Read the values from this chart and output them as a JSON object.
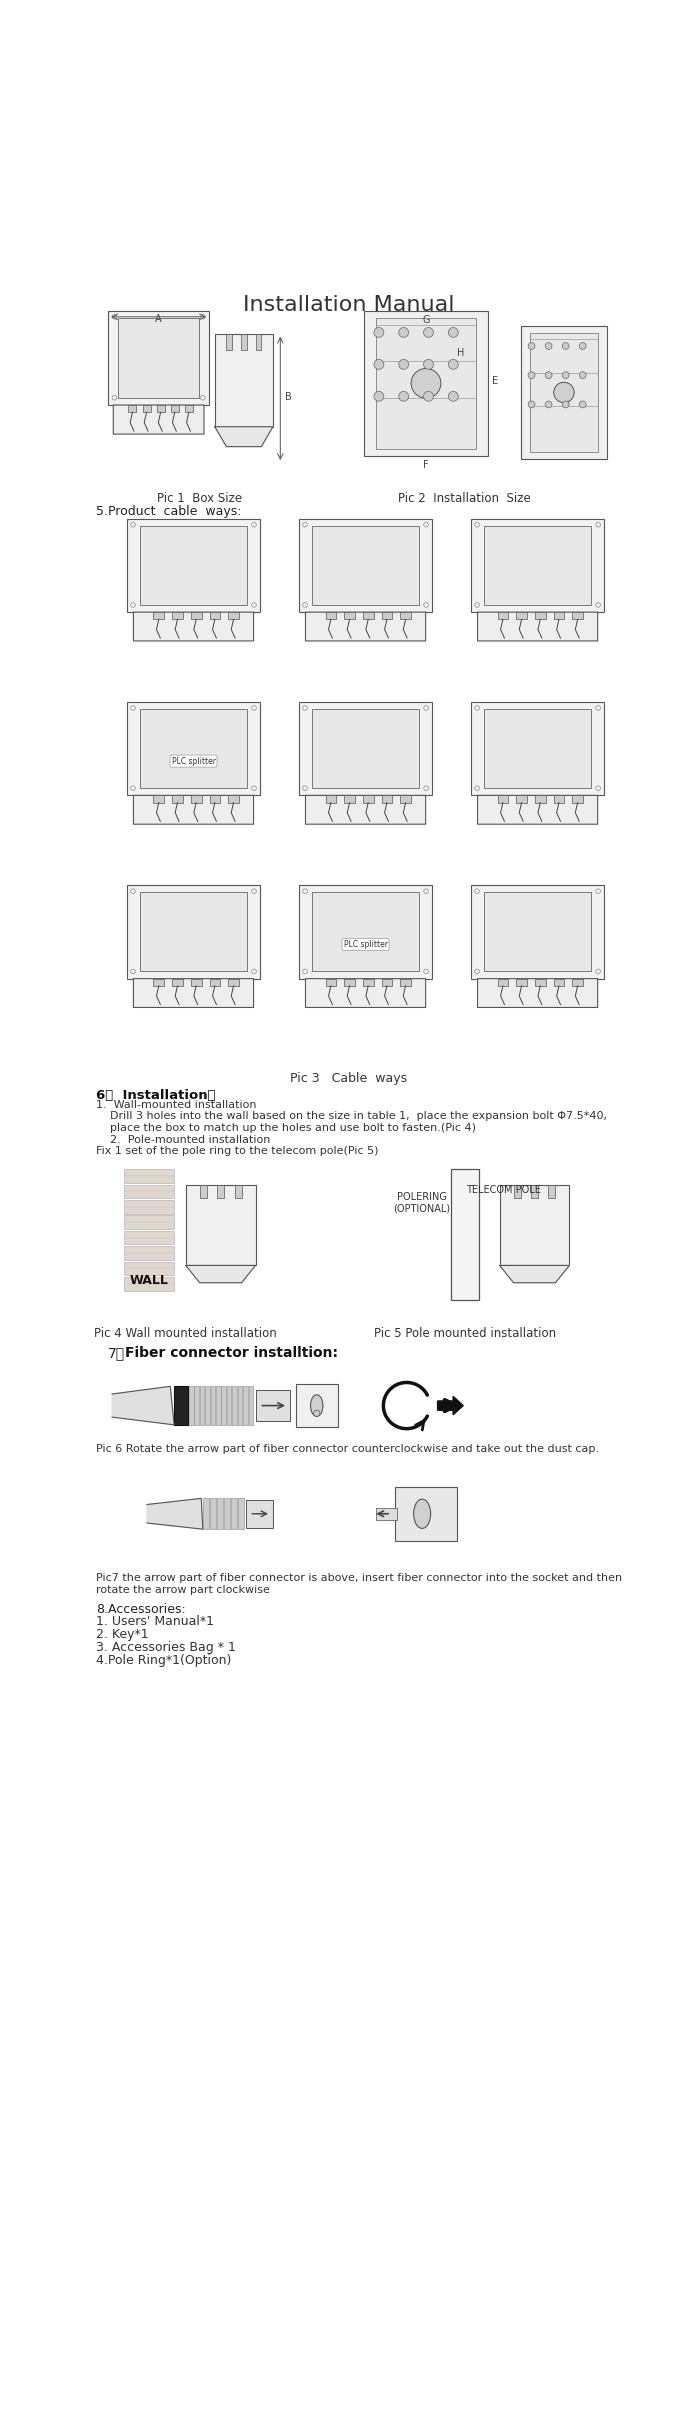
{
  "title": "Installation Manual",
  "bg_color": "#ffffff",
  "figsize": [
    6.8,
    24.09
  ],
  "dpi": 100,
  "pic1_caption": "Pic 1  Box Size",
  "pic2_caption": "Pic 2  Installation  Size",
  "section5_label": "5.Product  cable  ways:",
  "pic3_caption": "Pic 3   Cable  ways",
  "section6_title": "6．  Installation：",
  "section6_lines": [
    "1.  Wall-mounted installation",
    "    Drill 3 holes into the wall based on the size in table 1,  place the expansion bolt Φ7.5*40,",
    "    place the box to match up the holes and use bolt to fasten.(Pic 4)",
    "    2.  Pole-mounted installation",
    "Fix 1 set of the pole ring to the telecom pole(Pic 5)"
  ],
  "pic4_caption": "Pic 4 Wall mounted installation",
  "pic5_caption": "Pic 5 Pole mounted installation",
  "section7_title": "7、  Fiber connector installtion:",
  "pic6_caption": "Pic 6 Rotate the arrow part of fiber connector counterclockwise and take out the dust cap.",
  "pic7_caption": "Pic7 the arrow part of fiber connector is above, insert fiber connector into the socket and then\nrotate the arrow part clockwise",
  "acc_header": "8.Accessories:",
  "acc_items": [
    "1. Users' Manual*1",
    "2. Key*1",
    "3. Accessories Bag * 1",
    "4.Pole Ring*1(Option)"
  ],
  "gray_line": "#888888",
  "dark": "#222222",
  "mid_gray": "#666666",
  "light_gray": "#dddddd",
  "text_gray": "#444444"
}
